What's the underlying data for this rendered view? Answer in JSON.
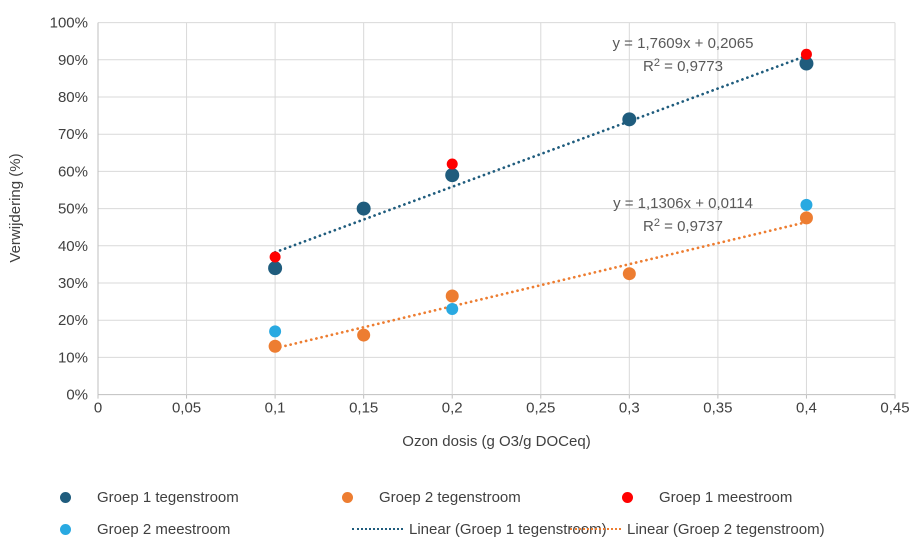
{
  "chart_data": {
    "type": "scatter",
    "title": "",
    "xlabel": "Ozon dosis (g O3/g DOCeq)",
    "ylabel": "Verwijdering (%)",
    "xlim": [
      0,
      0.45
    ],
    "ylim": [
      0,
      1
    ],
    "grid": true,
    "legend_position": "bottom",
    "x_ticks": [
      "0",
      "0,05",
      "0,1",
      "0,15",
      "0,2",
      "0,25",
      "0,3",
      "0,35",
      "0,4",
      "0,45"
    ],
    "y_ticks": [
      "0%",
      "10%",
      "20%",
      "30%",
      "40%",
      "50%",
      "60%",
      "70%",
      "80%",
      "90%",
      "100%"
    ],
    "colors": {
      "grid": "#D9D9D9",
      "axis": "#BFBFBF",
      "tick_text": "#404040",
      "equation_text": "#595959"
    },
    "series": [
      {
        "name": "Groep 1 tegenstroom",
        "color": "#1F5C7D",
        "points": [
          [
            0.1,
            0.34
          ],
          [
            0.15,
            0.5
          ],
          [
            0.2,
            0.59
          ],
          [
            0.3,
            0.74
          ],
          [
            0.4,
            0.89
          ]
        ]
      },
      {
        "name": "Groep 2 tegenstroom",
        "color": "#ED7D31",
        "points": [
          [
            0.1,
            0.13
          ],
          [
            0.15,
            0.16
          ],
          [
            0.2,
            0.265
          ],
          [
            0.3,
            0.325
          ],
          [
            0.4,
            0.475
          ]
        ]
      },
      {
        "name": "Groep 1 meestroom",
        "color": "#FF0000",
        "points": [
          [
            0.1,
            0.37
          ],
          [
            0.2,
            0.62
          ],
          [
            0.4,
            0.915
          ]
        ]
      },
      {
        "name": "Groep 2 meestroom",
        "color": "#29A9E1",
        "points": [
          [
            0.1,
            0.17
          ],
          [
            0.2,
            0.23
          ],
          [
            0.4,
            0.51
          ]
        ]
      }
    ],
    "trendlines": [
      {
        "name": "Linear (Groep 1 tegenstroom)",
        "color": "#1F5C7D",
        "slope": 1.7609,
        "intercept": 0.2065,
        "x_range": [
          0.1,
          0.4
        ],
        "equation": "y = 1,7609x + 0,2065",
        "r2": "R² = 0,9773"
      },
      {
        "name": "Linear (Groep 2 tegenstroom)",
        "color": "#ED7D31",
        "slope": 1.1306,
        "intercept": 0.0114,
        "x_range": [
          0.1,
          0.4
        ],
        "equation": "y = 1,1306x + 0,0114",
        "r2": "R² = 0,9737"
      }
    ]
  },
  "legend": {
    "rows": [
      [
        {
          "marker": "dot",
          "color": "#1F5C7D",
          "label": "Groep 1 tegenstroom"
        },
        {
          "marker": "dot",
          "color": "#ED7D31",
          "label": "Groep 2 tegenstroom"
        },
        {
          "marker": "dot",
          "color": "#FF0000",
          "label": "Groep 1 meestroom"
        }
      ],
      [
        {
          "marker": "dot",
          "color": "#29A9E1",
          "label": "Groep 2 meestroom"
        },
        {
          "marker": "line",
          "color": "#1F5C7D",
          "label": "Linear (Groep 1 tegenstroom)"
        },
        {
          "marker": "line",
          "color": "#ED7D31",
          "label": "Linear (Groep 2 tegenstroom)"
        }
      ]
    ]
  }
}
